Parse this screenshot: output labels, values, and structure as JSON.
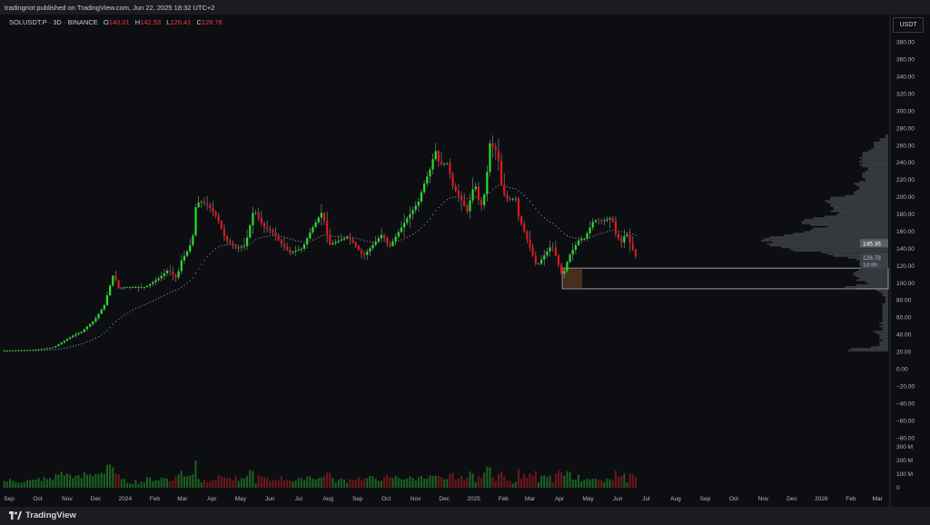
{
  "header": {
    "publisher_text": "tradingriot published on TradingView.com, Jun 22, 2025 18:32 UTC+2"
  },
  "legend": {
    "symbol": "SOLUSDT.P · 3D · BINANCE",
    "open_label": "O",
    "open": "140.01",
    "high_label": "H",
    "high": "142.53",
    "low_label": "L",
    "low": "126.41",
    "close_label": "C",
    "close": "128.78"
  },
  "currency_button": "USDT",
  "footer": {
    "brand": "TradingView"
  },
  "colors": {
    "up": "#22e02a",
    "down": "#e8141b",
    "background": "#0c0e12",
    "wick": "#808080",
    "zone_fill": "#4a2e1c",
    "zone_border": "#9a9ea6"
  },
  "chart_data": {
    "type": "candlestick",
    "interval": "3D",
    "title": "SOLUSDT.P · 3D · BINANCE",
    "ylim": [
      -80,
      380
    ],
    "y_ticks": [
      "380.00",
      "360.00",
      "340.00",
      "320.00",
      "300.00",
      "280.00",
      "260.00",
      "240.00",
      "220.00",
      "200.00",
      "180.00",
      "160.00",
      "140.00",
      "120.00",
      "100.00",
      "80.00",
      "60.00",
      "40.00",
      "20.00",
      "0.00",
      "−20.00",
      "−40.00",
      "−60.00",
      "−80.00"
    ],
    "x_ticks": [
      {
        "date": "2023-09-01",
        "label": "Sep"
      },
      {
        "date": "2023-10-01",
        "label": "Oct"
      },
      {
        "date": "2023-11-01",
        "label": "Nov"
      },
      {
        "date": "2023-12-01",
        "label": "Dec"
      },
      {
        "date": "2024-01-01",
        "label": "2024"
      },
      {
        "date": "2024-02-01",
        "label": "Feb"
      },
      {
        "date": "2024-03-01",
        "label": "Mar"
      },
      {
        "date": "2024-04-01",
        "label": "Apr"
      },
      {
        "date": "2024-05-01",
        "label": "May"
      },
      {
        "date": "2024-06-01",
        "label": "Jun"
      },
      {
        "date": "2024-07-01",
        "label": "Jul"
      },
      {
        "date": "2024-08-01",
        "label": "Aug"
      },
      {
        "date": "2024-09-01",
        "label": "Sep"
      },
      {
        "date": "2024-10-01",
        "label": "Oct"
      },
      {
        "date": "2024-11-01",
        "label": "Nov"
      },
      {
        "date": "2024-12-01",
        "label": "Dec"
      },
      {
        "date": "2025-01-01",
        "label": "2025"
      },
      {
        "date": "2025-02-01",
        "label": "Feb"
      },
      {
        "date": "2025-03-01",
        "label": "Mar"
      },
      {
        "date": "2025-04-01",
        "label": "Apr"
      },
      {
        "date": "2025-05-01",
        "label": "May"
      },
      {
        "date": "2025-06-01",
        "label": "Jun"
      },
      {
        "date": "2025-07-01",
        "label": "Jul"
      },
      {
        "date": "2025-08-01",
        "label": "Aug"
      },
      {
        "date": "2025-09-01",
        "label": "Sep"
      },
      {
        "date": "2025-10-01",
        "label": "Oct"
      },
      {
        "date": "2025-11-01",
        "label": "Nov"
      },
      {
        "date": "2025-12-01",
        "label": "Dec"
      },
      {
        "date": "2026-01-01",
        "label": "2026"
      },
      {
        "date": "2026-02-01",
        "label": "Feb"
      },
      {
        "date": "2026-03-01",
        "label": "Mar"
      }
    ],
    "closes": [
      [
        "2023-08-27",
        21
      ],
      [
        "2023-09-29",
        22
      ],
      [
        "2023-10-18",
        25
      ],
      [
        "2023-11-06",
        38
      ],
      [
        "2023-11-16",
        43
      ],
      [
        "2023-11-30",
        57
      ],
      [
        "2023-12-10",
        74
      ],
      [
        "2023-12-20",
        112
      ],
      [
        "2023-12-24",
        94
      ],
      [
        "2024-01-07",
        95
      ],
      [
        "2024-01-22",
        95
      ],
      [
        "2024-02-05",
        105
      ],
      [
        "2024-02-15",
        115
      ],
      [
        "2024-02-24",
        105
      ],
      [
        "2024-02-29",
        126
      ],
      [
        "2024-03-08",
        140
      ],
      [
        "2024-03-12",
        155
      ],
      [
        "2024-03-14",
        186
      ],
      [
        "2024-03-19",
        195
      ],
      [
        "2024-03-28",
        190
      ],
      [
        "2024-04-07",
        175
      ],
      [
        "2024-04-15",
        151
      ],
      [
        "2024-04-26",
        140
      ],
      [
        "2024-05-06",
        143
      ],
      [
        "2024-05-15",
        186
      ],
      [
        "2024-05-25",
        165
      ],
      [
        "2024-06-03",
        160
      ],
      [
        "2024-06-13",
        145
      ],
      [
        "2024-06-22",
        135
      ],
      [
        "2024-07-05",
        140
      ],
      [
        "2024-07-14",
        161
      ],
      [
        "2024-07-26",
        183
      ],
      [
        "2024-08-02",
        144
      ],
      [
        "2024-08-22",
        154
      ],
      [
        "2024-09-07",
        131
      ],
      [
        "2024-09-27",
        157
      ],
      [
        "2024-10-04",
        141
      ],
      [
        "2024-10-23",
        175
      ],
      [
        "2024-11-05",
        196
      ],
      [
        "2024-11-08",
        210
      ],
      [
        "2024-11-18",
        237
      ],
      [
        "2024-11-21",
        257
      ],
      [
        "2024-11-26",
        237
      ],
      [
        "2024-12-05",
        239
      ],
      [
        "2024-12-09",
        214
      ],
      [
        "2024-12-19",
        196
      ],
      [
        "2024-12-25",
        183
      ],
      [
        "2025-01-02",
        217
      ],
      [
        "2025-01-08",
        186
      ],
      [
        "2025-01-13",
        207
      ],
      [
        "2025-01-18",
        262
      ],
      [
        "2025-01-26",
        251
      ],
      [
        "2025-01-31",
        205
      ],
      [
        "2025-02-06",
        196
      ],
      [
        "2025-02-14",
        198
      ],
      [
        "2025-02-17",
        177
      ],
      [
        "2025-02-25",
        154
      ],
      [
        "2025-03-01",
        141
      ],
      [
        "2025-03-08",
        119
      ],
      [
        "2025-03-18",
        135
      ],
      [
        "2025-03-24",
        144
      ],
      [
        "2025-03-29",
        128
      ],
      [
        "2025-04-04",
        107
      ],
      [
        "2025-04-11",
        131
      ],
      [
        "2025-04-22",
        151
      ],
      [
        "2025-04-27",
        151
      ],
      [
        "2025-05-07",
        173
      ],
      [
        "2025-05-17",
        172
      ],
      [
        "2025-05-26",
        176
      ],
      [
        "2025-05-30",
        157
      ],
      [
        "2025-06-05",
        147
      ],
      [
        "2025-06-10",
        159
      ],
      [
        "2025-06-14",
        146
      ],
      [
        "2025-06-21",
        128.78
      ]
    ],
    "last_candle": {
      "open": 140.01,
      "high": 142.53,
      "low": 126.41,
      "close": 128.78
    },
    "moving_average_value": "145.36",
    "last_price_label": "128.78",
    "countdown_label": "1d 8h",
    "zone": {
      "from_date": "2025-04-04",
      "top": 117,
      "bottom": 93
    },
    "volume_axis": {
      "ticks": [
        "300 M",
        "200 M",
        "100 M",
        "0"
      ]
    }
  }
}
